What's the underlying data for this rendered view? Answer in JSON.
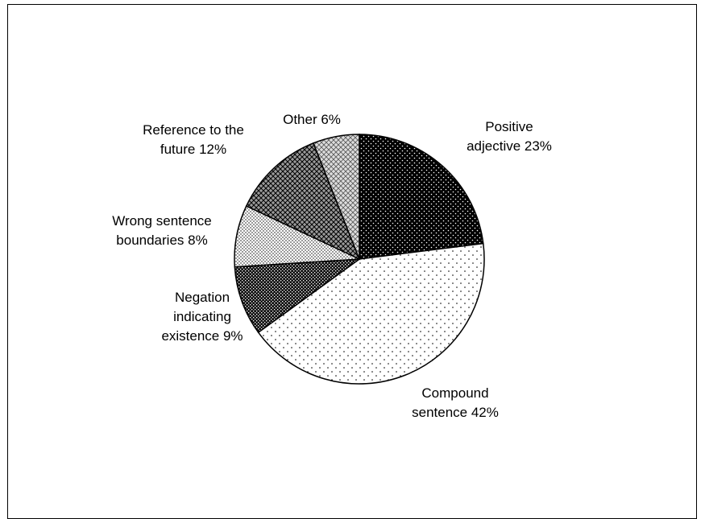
{
  "chart_data": {
    "type": "pie",
    "title": "",
    "slices": [
      {
        "label_lines": [
          "Positive",
          "adjective 23%"
        ],
        "value": 23,
        "pattern": "dots-dark"
      },
      {
        "label_lines": [
          "Compound",
          "sentence 42%"
        ],
        "value": 42,
        "pattern": "dots-light"
      },
      {
        "label_lines": [
          "Negation",
          "indicating",
          "existence 9%"
        ],
        "value": 9,
        "pattern": "check-dark"
      },
      {
        "label_lines": [
          "Wrong sentence",
          "boundaries 8%"
        ],
        "value": 8,
        "pattern": "dots-medium"
      },
      {
        "label_lines": [
          "Reference to the",
          "future 12%"
        ],
        "value": 12,
        "pattern": "crosshatch"
      },
      {
        "label_lines": [
          "Other 6%"
        ],
        "value": 6,
        "pattern": "diamond-light"
      }
    ],
    "start": "12 o'clock",
    "direction": "clockwise",
    "legend": "none"
  }
}
